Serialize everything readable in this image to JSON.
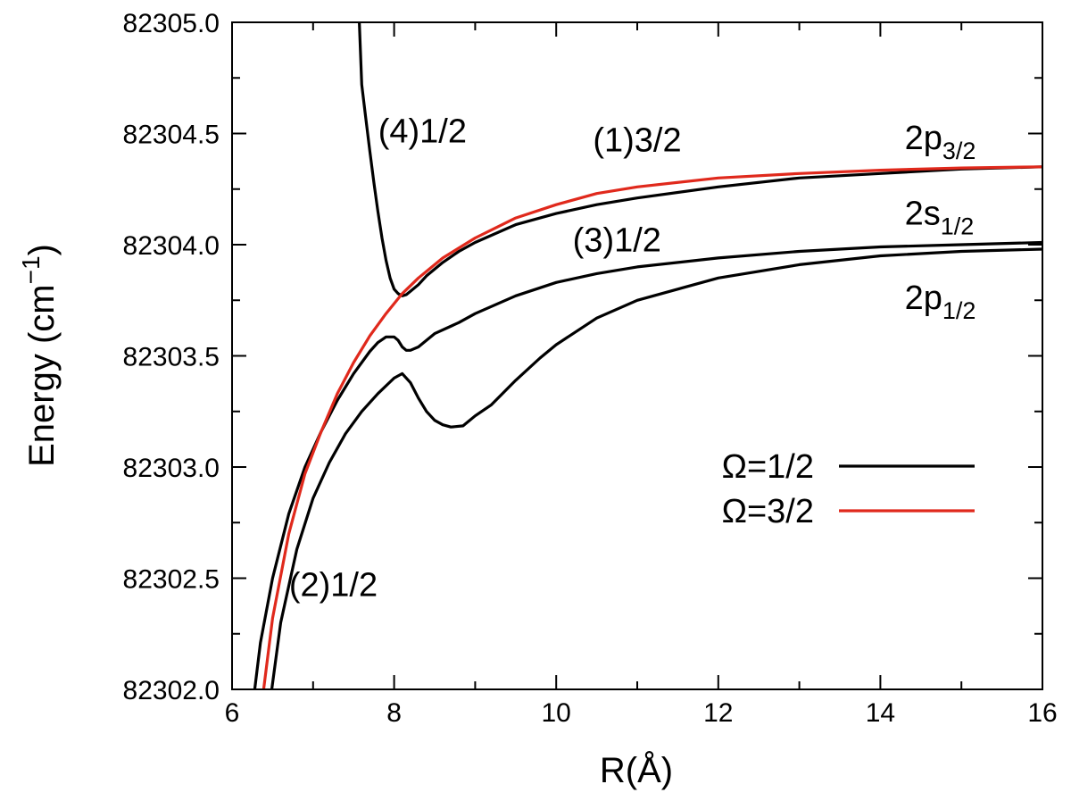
{
  "chart_data": {
    "type": "line",
    "xlabel": "R(Å)",
    "ylabel_main": "Energy (cm",
    "ylabel_sup": "−1",
    "ylabel_close": ")",
    "xlim": [
      6,
      16
    ],
    "ylim": [
      82302.0,
      82305.0
    ],
    "x_ticks": [
      6,
      8,
      10,
      12,
      14,
      16
    ],
    "x_tick_labels": [
      "6",
      "8",
      "10",
      "12",
      "14",
      "16"
    ],
    "y_ticks": [
      82302.0,
      82302.5,
      82303.0,
      82303.5,
      82304.0,
      82304.5,
      82305.0
    ],
    "y_tick_labels": [
      "82302.0",
      "82302.5",
      "82303.0",
      "82303.5",
      "82304.0",
      "82304.5",
      "82305.0"
    ],
    "colors": {
      "omega_half": "#000000",
      "omega_three_half": "#e0291c"
    },
    "legend": {
      "placement": "lower-right",
      "entries": [
        {
          "label": "Ω=1/2",
          "color": "#000000"
        },
        {
          "label": "Ω=3/2",
          "color": "#e0291c"
        }
      ]
    },
    "series": [
      {
        "group": "Ω=1/2",
        "color": "#000000",
        "points": [
          [
            7.57,
            82305.0
          ],
          [
            7.6,
            82304.72
          ],
          [
            7.65,
            82304.57
          ],
          [
            7.7,
            82304.42
          ],
          [
            7.75,
            82304.28
          ],
          [
            7.8,
            82304.15
          ],
          [
            7.85,
            82304.03
          ],
          [
            7.9,
            82303.93
          ],
          [
            7.95,
            82303.85
          ],
          [
            8.0,
            82303.8
          ],
          [
            8.05,
            82303.78
          ],
          [
            8.1,
            82303.77
          ],
          [
            8.15,
            82303.775
          ],
          [
            8.2,
            82303.79
          ],
          [
            8.3,
            82303.82
          ],
          [
            8.4,
            82303.86
          ],
          [
            8.6,
            82303.92
          ],
          [
            8.8,
            82303.97
          ],
          [
            9.0,
            82304.01
          ],
          [
            9.5,
            82304.09
          ],
          [
            10.0,
            82304.14
          ],
          [
            10.5,
            82304.18
          ],
          [
            11.0,
            82304.21
          ],
          [
            12.0,
            82304.26
          ],
          [
            13.0,
            82304.3
          ],
          [
            14.0,
            82304.32
          ],
          [
            15.0,
            82304.34
          ],
          [
            16.0,
            82304.35
          ]
        ]
      },
      {
        "group": "Ω=1/2",
        "color": "#000000",
        "points": [
          [
            6.28,
            82302.0
          ],
          [
            6.35,
            82302.21
          ],
          [
            6.5,
            82302.5
          ],
          [
            6.7,
            82302.79
          ],
          [
            6.9,
            82303.0
          ],
          [
            7.1,
            82303.16
          ],
          [
            7.3,
            82303.3
          ],
          [
            7.5,
            82303.42
          ],
          [
            7.7,
            82303.52
          ],
          [
            7.8,
            82303.56
          ],
          [
            7.9,
            82303.585
          ],
          [
            8.0,
            82303.585
          ],
          [
            8.05,
            82303.57
          ],
          [
            8.1,
            82303.54
          ],
          [
            8.15,
            82303.525
          ],
          [
            8.2,
            82303.525
          ],
          [
            8.3,
            82303.54
          ],
          [
            8.5,
            82303.6
          ],
          [
            8.8,
            82303.65
          ],
          [
            9.0,
            82303.69
          ],
          [
            9.5,
            82303.77
          ],
          [
            10.0,
            82303.83
          ],
          [
            10.5,
            82303.87
          ],
          [
            11.0,
            82303.9
          ],
          [
            12.0,
            82303.94
          ],
          [
            13.0,
            82303.97
          ],
          [
            14.0,
            82303.99
          ],
          [
            15.0,
            82304.0
          ],
          [
            16.0,
            82304.01
          ]
        ]
      },
      {
        "group": "Ω=1/2",
        "color": "#000000",
        "points": [
          [
            6.49,
            82302.0
          ],
          [
            6.6,
            82302.3
          ],
          [
            6.8,
            82302.63
          ],
          [
            7.0,
            82302.86
          ],
          [
            7.2,
            82303.02
          ],
          [
            7.4,
            82303.15
          ],
          [
            7.6,
            82303.25
          ],
          [
            7.8,
            82303.33
          ],
          [
            8.0,
            82303.4
          ],
          [
            8.1,
            82303.42
          ],
          [
            8.2,
            82303.38
          ],
          [
            8.3,
            82303.31
          ],
          [
            8.4,
            82303.25
          ],
          [
            8.5,
            82303.21
          ],
          [
            8.6,
            82303.19
          ],
          [
            8.7,
            82303.18
          ],
          [
            8.85,
            82303.185
          ],
          [
            9.0,
            82303.23
          ],
          [
            9.2,
            82303.28
          ],
          [
            9.5,
            82303.39
          ],
          [
            9.8,
            82303.49
          ],
          [
            10.0,
            82303.55
          ],
          [
            10.5,
            82303.67
          ],
          [
            11.0,
            82303.75
          ],
          [
            12.0,
            82303.85
          ],
          [
            13.0,
            82303.91
          ],
          [
            14.0,
            82303.95
          ],
          [
            15.0,
            82303.97
          ],
          [
            16.0,
            82303.98
          ]
        ]
      },
      {
        "group": "Ω=3/2",
        "color": "#e0291c",
        "points": [
          [
            6.39,
            82302.0
          ],
          [
            6.5,
            82302.32
          ],
          [
            6.7,
            82302.7
          ],
          [
            6.9,
            82302.97
          ],
          [
            7.1,
            82303.16
          ],
          [
            7.3,
            82303.33
          ],
          [
            7.5,
            82303.47
          ],
          [
            7.7,
            82303.59
          ],
          [
            7.9,
            82303.69
          ],
          [
            8.1,
            82303.78
          ],
          [
            8.3,
            82303.85
          ],
          [
            8.6,
            82303.94
          ],
          [
            9.0,
            82304.03
          ],
          [
            9.5,
            82304.12
          ],
          [
            10.0,
            82304.18
          ],
          [
            10.5,
            82304.23
          ],
          [
            11.0,
            82304.26
          ],
          [
            12.0,
            82304.3
          ],
          [
            13.0,
            82304.32
          ],
          [
            14.0,
            82304.335
          ],
          [
            15.0,
            82304.345
          ],
          [
            16.0,
            82304.35
          ]
        ]
      }
    ],
    "annotations": [
      {
        "id": "label-4-half",
        "text": "(4)1/2",
        "x": 8.35,
        "y": 82304.46,
        "color": "#000000"
      },
      {
        "id": "label-1-three-half",
        "text": "(1)3/2",
        "x": 11.0,
        "y": 82304.42,
        "color": "#e0291c"
      },
      {
        "id": "label-3-half",
        "text": "(3)1/2",
        "x": 10.75,
        "y": 82303.97,
        "color": "#000000"
      },
      {
        "id": "label-2-half",
        "text": "(2)1/2",
        "x": 7.25,
        "y": 82302.42,
        "color": "#000000"
      }
    ],
    "asymptote_labels": [
      {
        "id": "asym-2p32",
        "base": "2p",
        "sub": "3/2",
        "x": 14.3,
        "y": 82304.43
      },
      {
        "id": "asym-2s12",
        "base": "2s",
        "sub": "1/2",
        "x": 14.3,
        "y": 82304.09
      },
      {
        "id": "asym-2p12",
        "base": "2p",
        "sub": "1/2",
        "x": 14.3,
        "y": 82303.71
      }
    ]
  }
}
